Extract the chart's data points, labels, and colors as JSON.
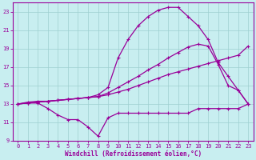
{
  "xlabel": "Windchill (Refroidissement éolien,°C)",
  "background_color": "#c8eef0",
  "grid_color": "#9ecfcf",
  "line_color": "#990099",
  "xlim": [
    -0.5,
    23.5
  ],
  "ylim": [
    9,
    24
  ],
  "xticks": [
    0,
    1,
    2,
    3,
    4,
    5,
    6,
    7,
    8,
    9,
    10,
    11,
    12,
    13,
    14,
    15,
    16,
    17,
    18,
    19,
    20,
    21,
    22,
    23
  ],
  "yticks": [
    9,
    11,
    13,
    15,
    17,
    19,
    21,
    23
  ],
  "line1_x": [
    0,
    1,
    2,
    3,
    4,
    5,
    6,
    7,
    8,
    9,
    10,
    11,
    12,
    13,
    14,
    15,
    16,
    17,
    18,
    19,
    20,
    21,
    22,
    23
  ],
  "line1_y": [
    13.0,
    13.1,
    13.2,
    13.3,
    13.4,
    13.5,
    13.6,
    13.7,
    13.8,
    14.0,
    14.3,
    14.6,
    15.0,
    15.4,
    15.8,
    16.2,
    16.5,
    16.8,
    17.1,
    17.4,
    17.7,
    18.0,
    18.3,
    19.3
  ],
  "line2_x": [
    0,
    1,
    2,
    3,
    4,
    5,
    6,
    7,
    8,
    9,
    10,
    11,
    12,
    13,
    14,
    15,
    16,
    17,
    18,
    19,
    20,
    21,
    22,
    23
  ],
  "line2_y": [
    13.0,
    13.1,
    13.2,
    13.3,
    13.4,
    13.5,
    13.6,
    13.7,
    13.8,
    14.2,
    14.8,
    15.4,
    16.0,
    16.7,
    17.3,
    18.0,
    18.6,
    19.2,
    19.5,
    19.3,
    17.3,
    15.0,
    14.5,
    13.0
  ],
  "line3_x": [
    0,
    1,
    2,
    3,
    4,
    5,
    6,
    7,
    8,
    9,
    10,
    11,
    12,
    13,
    14,
    15,
    16,
    17,
    18,
    19,
    20,
    21,
    22,
    23
  ],
  "line3_y": [
    13.0,
    13.1,
    13.1,
    12.5,
    11.8,
    11.3,
    11.3,
    10.5,
    9.5,
    11.5,
    12.0,
    12.0,
    12.0,
    12.0,
    12.0,
    12.0,
    12.0,
    12.0,
    12.5,
    12.5,
    12.5,
    12.5,
    12.5,
    13.0
  ],
  "line4_x": [
    0,
    1,
    2,
    3,
    4,
    5,
    6,
    7,
    8,
    9,
    10,
    11,
    12,
    13,
    14,
    15,
    16,
    17,
    18,
    19,
    20,
    21,
    22,
    23
  ],
  "line4_y": [
    13.0,
    13.2,
    13.3,
    13.3,
    13.4,
    13.5,
    13.6,
    13.7,
    14.0,
    14.8,
    18.0,
    20.0,
    21.5,
    22.5,
    23.2,
    23.5,
    23.5,
    22.5,
    21.5,
    20.0,
    17.5,
    16.0,
    14.5,
    13.0
  ]
}
